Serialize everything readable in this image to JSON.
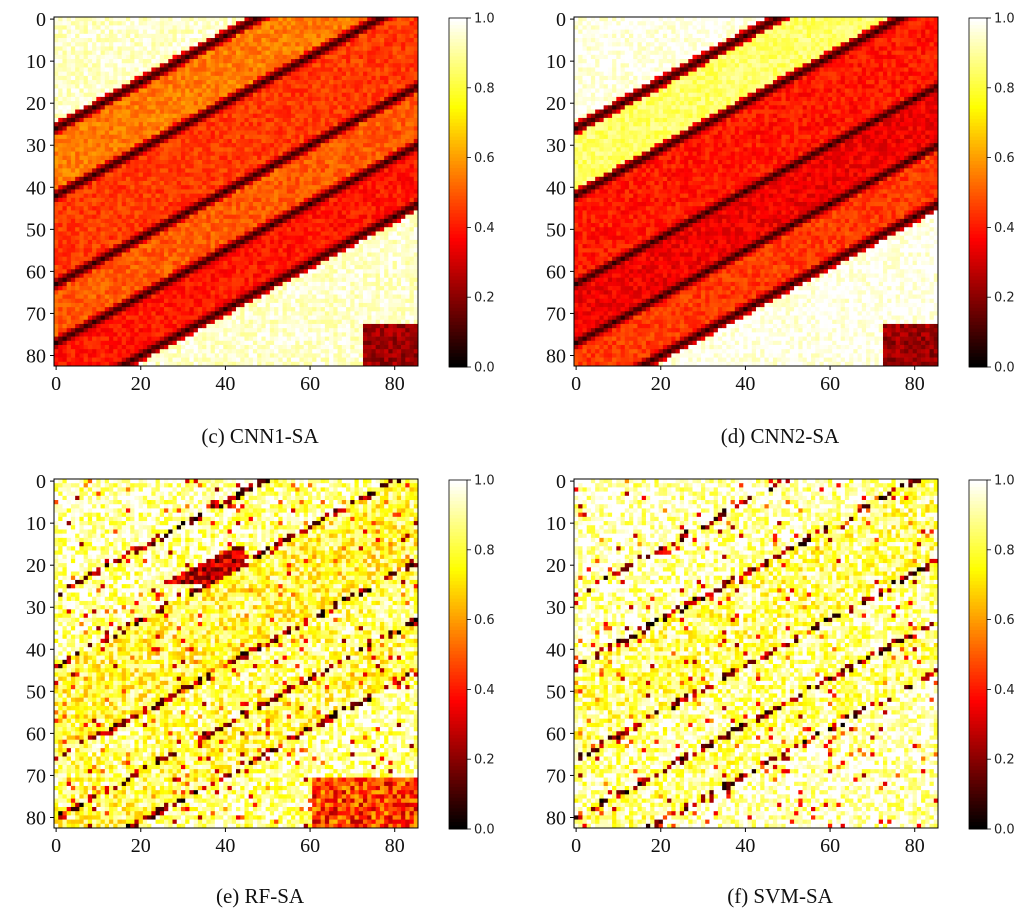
{
  "colors": {
    "background": "#ffffff",
    "axis": "#000000",
    "colormap": "hot"
  },
  "chart_data": [
    {
      "type": "heatmap",
      "title": "(c) CNN1-SA",
      "caption": "(c) CNN1-SA",
      "xlim": [
        0,
        85
      ],
      "ylim": [
        0,
        82
      ],
      "xticks": [
        0,
        20,
        40,
        60,
        80
      ],
      "yticks": [
        0,
        10,
        20,
        30,
        40,
        50,
        60,
        70,
        80
      ],
      "colorbar": {
        "min": 0.0,
        "max": 1.0,
        "ticks": [
          "0.0",
          "0.2",
          "0.4",
          "0.6",
          "0.8",
          "1.0"
        ]
      },
      "pattern": "smooth",
      "dark_bands_yx": [
        [
          26,
          -0.55
        ],
        [
          42,
          -0.55
        ],
        [
          63,
          -0.55
        ],
        [
          77,
          -0.55
        ],
        [
          91,
          -0.55
        ]
      ],
      "bright_band_values": [
        0.95,
        0.55,
        0.45,
        0.5,
        0.4,
        0.95
      ]
    },
    {
      "type": "heatmap",
      "title": "(d) CNN2-SA",
      "caption": "(d) CNN2-SA",
      "xlim": [
        0,
        85
      ],
      "ylim": [
        0,
        82
      ],
      "xticks": [
        0,
        20,
        40,
        60,
        80
      ],
      "yticks": [
        0,
        10,
        20,
        30,
        40,
        50,
        60,
        70,
        80
      ],
      "colorbar": {
        "min": 0.0,
        "max": 1.0,
        "ticks": [
          "0.0",
          "0.2",
          "0.4",
          "0.6",
          "0.8",
          "1.0"
        ]
      },
      "pattern": "smooth",
      "dark_bands_yx": [
        [
          26,
          -0.55
        ],
        [
          42,
          -0.55
        ],
        [
          63,
          -0.55
        ],
        [
          77,
          -0.55
        ],
        [
          91,
          -0.55
        ]
      ],
      "bright_band_values": [
        0.98,
        0.85,
        0.4,
        0.35,
        0.45,
        0.98
      ]
    },
    {
      "type": "heatmap",
      "title": "(e) RF-SA",
      "caption": "(e) RF-SA",
      "xlim": [
        0,
        85
      ],
      "ylim": [
        0,
        82
      ],
      "xticks": [
        0,
        20,
        40,
        60,
        80
      ],
      "yticks": [
        0,
        10,
        20,
        30,
        40,
        50,
        60,
        70,
        80
      ],
      "colorbar": {
        "min": 0.0,
        "max": 1.0,
        "ticks": [
          "0.0",
          "0.2",
          "0.4",
          "0.6",
          "0.8",
          "1.0"
        ]
      },
      "pattern": "noisy",
      "dark_bands_yx": [
        [
          27,
          -0.55
        ],
        [
          44,
          -0.55
        ],
        [
          66,
          -0.55
        ],
        [
          80,
          -0.55
        ],
        [
          92,
          -0.55
        ]
      ],
      "bright_band_values": [
        0.92,
        0.9,
        0.8,
        0.85,
        0.82,
        0.9
      ]
    },
    {
      "type": "heatmap",
      "title": "(f) SVM-SA",
      "caption": "(f) SVM-SA",
      "xlim": [
        0,
        85
      ],
      "ylim": [
        0,
        82
      ],
      "xticks": [
        0,
        20,
        40,
        60,
        80
      ],
      "yticks": [
        0,
        10,
        20,
        30,
        40,
        50,
        60,
        70,
        80
      ],
      "colorbar": {
        "min": 0.0,
        "max": 1.0,
        "ticks": [
          "0.0",
          "0.2",
          "0.4",
          "0.6",
          "0.8",
          "1.0"
        ]
      },
      "pattern": "noisy",
      "dark_bands_yx": [
        [
          27,
          -0.55
        ],
        [
          44,
          -0.55
        ],
        [
          66,
          -0.55
        ],
        [
          80,
          -0.55
        ],
        [
          92,
          -0.55
        ]
      ],
      "bright_band_values": [
        0.95,
        0.93,
        0.85,
        0.9,
        0.88,
        0.95
      ]
    }
  ]
}
